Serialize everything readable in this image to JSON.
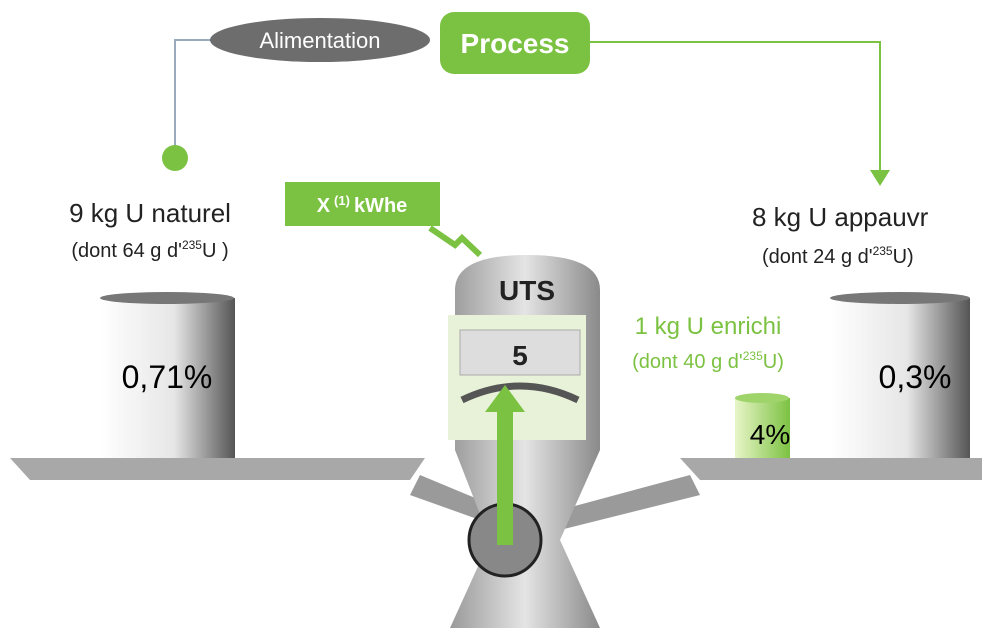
{
  "header": {
    "feed": "Alimentation",
    "process": "Process"
  },
  "energy": {
    "prefix": "X",
    "note": "(1)",
    "unit": "kWhe"
  },
  "machine": {
    "label": "UTS",
    "value": "5"
  },
  "feed": {
    "title": "9 kg U naturel",
    "detail_prefix": "(dont 64 g d'",
    "isotope": "235",
    "detail_suffix": "U )",
    "percent": "0,71%"
  },
  "product": {
    "title": "1 kg U enrichi",
    "detail_prefix": "(dont 40 g d'",
    "isotope": "235",
    "detail_suffix": "U)",
    "percent": "4%"
  },
  "tails": {
    "title": "8 kg U appauvr",
    "detail_prefix": "(dont 24 g d'",
    "isotope": "235",
    "detail_suffix": "U)",
    "percent": "0,3%"
  }
}
